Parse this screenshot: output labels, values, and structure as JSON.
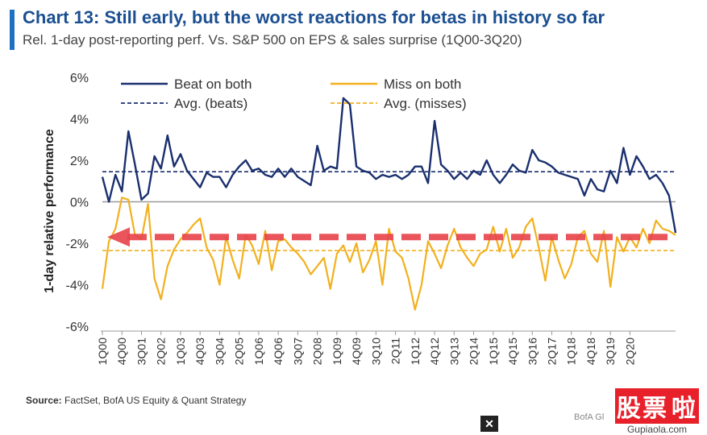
{
  "header": {
    "title": "Chart 13: Still early, but the worst reactions for betas in history so far",
    "subtitle": "Rel. 1-day post-reporting perf. Vs. S&P 500 on EPS & sales surprise (1Q00-3Q20)"
  },
  "footer": {
    "source_label": "Source:",
    "source_text": "FactSet, BofA US Equity & Quant Strategy",
    "mark": "BofA Gl",
    "watermark_cn_1": "股票",
    "watermark_cn_2": "啦",
    "watermark_url": "Gupiaola.com"
  },
  "colors": {
    "beat": "#1a2f6e",
    "miss": "#f2b01e",
    "arrow": "#e8434a",
    "accent": "#1f6fc2"
  },
  "chart_data": {
    "type": "line",
    "title": "Chart 13: Still early, but the worst reactions for betas in history so far",
    "subtitle": "Rel. 1-day post-reporting perf. Vs. S&P 500 on EPS & sales surprise (1Q00-3Q20)",
    "ylabel": "1-day relative performance",
    "xlabel": "",
    "ylim": [
      -6,
      6
    ],
    "yticks": [
      "6%",
      "4%",
      "2%",
      "0%",
      "-2%",
      "-4%",
      "-6%"
    ],
    "ytick_values": [
      6,
      4,
      2,
      0,
      -2,
      -4,
      -6
    ],
    "xtick_labels": [
      "1Q00",
      "4Q00",
      "3Q01",
      "2Q02",
      "1Q03",
      "4Q03",
      "3Q04",
      "2Q05",
      "1Q06",
      "4Q06",
      "3Q07",
      "2Q08",
      "1Q09",
      "4Q09",
      "3Q10",
      "2Q11",
      "1Q12",
      "4Q12",
      "3Q13",
      "2Q14",
      "1Q15",
      "4Q15",
      "3Q16",
      "2Q17",
      "1Q18",
      "4Q18",
      "3Q19",
      "2Q20"
    ],
    "x_start": "1Q00",
    "x_end": "3Q20",
    "legend_position": "top",
    "series": [
      {
        "name": "Beat on both",
        "style": "solid",
        "values": [
          1.2,
          0.0,
          1.3,
          0.5,
          3.4,
          1.8,
          0.1,
          0.4,
          2.2,
          1.6,
          3.2,
          1.7,
          2.3,
          1.5,
          1.1,
          0.7,
          1.4,
          1.2,
          1.2,
          0.7,
          1.3,
          1.7,
          2.0,
          1.5,
          1.6,
          1.3,
          1.2,
          1.6,
          1.2,
          1.6,
          1.2,
          1.0,
          0.8,
          2.7,
          1.5,
          1.7,
          1.6,
          5.0,
          4.7,
          1.7,
          1.5,
          1.4,
          1.1,
          1.3,
          1.2,
          1.3,
          1.1,
          1.3,
          1.7,
          1.7,
          0.9,
          3.9,
          1.8,
          1.5,
          1.1,
          1.4,
          1.1,
          1.5,
          1.3,
          2.0,
          1.3,
          0.9,
          1.3,
          1.8,
          1.5,
          1.4,
          2.5,
          2.0,
          1.9,
          1.7,
          1.4,
          1.3,
          1.2,
          1.1,
          0.3,
          1.1,
          0.6,
          0.5,
          1.5,
          0.9,
          2.6,
          1.3,
          2.2,
          1.7,
          1.1,
          1.3,
          0.9,
          0.3,
          -1.5
        ]
      },
      {
        "name": "Miss on both",
        "style": "solid",
        "values": [
          -4.2,
          -1.9,
          -1.3,
          0.2,
          0.1,
          -1.6,
          -1.8,
          -0.1,
          -3.7,
          -4.7,
          -3.1,
          -2.3,
          -1.8,
          -1.5,
          -1.1,
          -0.8,
          -2.2,
          -2.8,
          -4.0,
          -1.7,
          -2.8,
          -3.7,
          -1.6,
          -2.1,
          -3.0,
          -1.4,
          -3.3,
          -1.9,
          -1.8,
          -2.2,
          -2.5,
          -2.9,
          -3.5,
          -3.1,
          -2.7,
          -4.2,
          -2.5,
          -2.1,
          -2.9,
          -2.0,
          -3.4,
          -2.8,
          -1.9,
          -4.0,
          -1.3,
          -2.4,
          -2.7,
          -3.7,
          -5.2,
          -4.0,
          -1.9,
          -2.5,
          -3.2,
          -2.1,
          -1.3,
          -2.2,
          -2.7,
          -3.1,
          -2.5,
          -2.3,
          -1.2,
          -2.4,
          -1.3,
          -2.7,
          -2.2,
          -1.2,
          -0.8,
          -2.2,
          -3.8,
          -1.7,
          -2.8,
          -3.7,
          -3.0,
          -1.7,
          -1.4,
          -2.5,
          -2.9,
          -1.4,
          -4.1,
          -1.7,
          -2.4,
          -1.7,
          -2.2,
          -1.3,
          -2.0,
          -0.9,
          -1.3,
          -1.4,
          -1.6
        ]
      },
      {
        "name": "Avg. (beats)",
        "style": "dashed",
        "value": 1.45
      },
      {
        "name": "Avg. (misses)",
        "style": "dashed",
        "value": -2.35
      }
    ],
    "annotation": {
      "type": "arrow",
      "direction": "left",
      "value": -1.7
    }
  }
}
